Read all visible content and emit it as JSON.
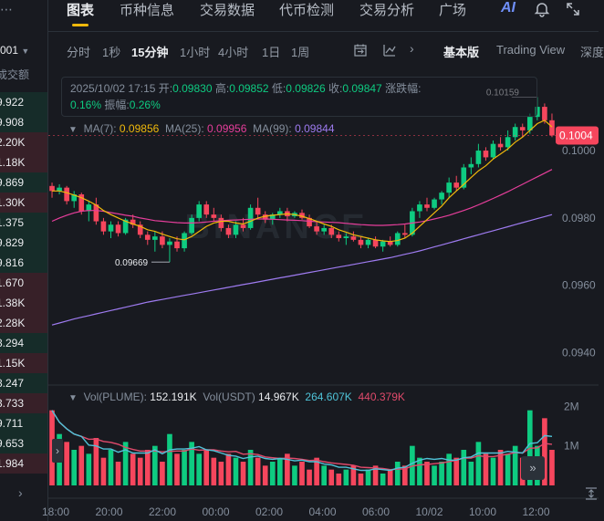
{
  "left_panel": {
    "header_value": "001",
    "header_label": "成交额",
    "rows": [
      {
        "text": "9.922",
        "dir": "up"
      },
      {
        "text": "9.908",
        "dir": "up"
      },
      {
        "text": "2.20K",
        "dir": "dn"
      },
      {
        "text": "1.18K",
        "dir": "dn"
      },
      {
        "text": "9.869",
        "dir": "up"
      },
      {
        "text": "1.30K",
        "dir": "dn"
      },
      {
        "text": "1.375",
        "dir": "up"
      },
      {
        "text": "9.829",
        "dir": "up"
      },
      {
        "text": "9.816",
        "dir": "up"
      },
      {
        "text": "1.670",
        "dir": "dn"
      },
      {
        "text": "1.38K",
        "dir": "dn"
      },
      {
        "text": "2.28K",
        "dir": "dn"
      },
      {
        "text": "8.294",
        "dir": "up"
      },
      {
        "text": "1.15K",
        "dir": "dn"
      },
      {
        "text": "8.247",
        "dir": "up"
      },
      {
        "text": "3.733",
        "dir": "dn"
      },
      {
        "text": "9.711",
        "dir": "up"
      },
      {
        "text": "9.653",
        "dir": "up"
      },
      {
        "text": "1.984",
        "dir": "dn"
      }
    ]
  },
  "nav": {
    "tabs": [
      "图表",
      "币种信息",
      "交易数据",
      "代币检测",
      "交易分析",
      "广场"
    ],
    "active": "图表",
    "ai_label": "AI"
  },
  "toolbar": {
    "intervals": [
      "分时",
      "1秒",
      "15分钟",
      "1小时",
      "4小时",
      "1日",
      "1周"
    ],
    "active_interval": "15分钟",
    "views": [
      "基本版",
      "Trading View",
      "深度"
    ],
    "active_view": "基本版"
  },
  "info": {
    "datetime": "2025/10/02 17:15",
    "open_label": "开:",
    "open": "0.09830",
    "high_label": "高:",
    "high": "0.09852",
    "low_label": "低:",
    "low": "0.09826",
    "close_label": "收:",
    "close": "0.09847",
    "change_label": "涨跌幅:",
    "change": "0.16%",
    "amplitude_label": "振幅:",
    "amplitude": "0.26%"
  },
  "ma": {
    "ma7_label": "MA(7):",
    "ma7": "0.09856",
    "ma25_label": "MA(25):",
    "ma25": "0.09956",
    "ma99_label": "MA(99):",
    "ma99": "0.09844"
  },
  "volume": {
    "vol_label": "Vol(PLUME):",
    "vol": "152.191K",
    "usdt_label": "Vol(USDT)",
    "usdt": "14.967K",
    "ma1": "264.607K",
    "ma2": "440.379K"
  },
  "price_axis": [
    "0.1004",
    "0.1000",
    "0.0980",
    "0.0960",
    "0.0940"
  ],
  "volume_axis": [
    "2M",
    "1M"
  ],
  "time_axis": [
    "18:00",
    "20:00",
    "22:00",
    "00:00",
    "02:00",
    "04:00",
    "06:00",
    "10/02",
    "10:00",
    "12:00"
  ],
  "annotations": {
    "high_marker": "0.10159",
    "low_marker": "0.09669"
  },
  "watermark": "BINANCE",
  "colors": {
    "up": "#0ecb81",
    "down": "#f6465d",
    "ma7": "#f0b90b",
    "ma25": "#e63e9b",
    "ma99": "#9e7bf0",
    "accent": "#f0b90b"
  },
  "chart_data": {
    "type": "candlestick",
    "interval": "15分钟",
    "ylim": [
      0.0932,
      0.1016
    ],
    "candles": [
      [
        0.09895,
        0.09905,
        0.0986,
        0.0988
      ],
      [
        0.0988,
        0.099,
        0.0987,
        0.0989
      ],
      [
        0.0989,
        0.09895,
        0.0984,
        0.0985
      ],
      [
        0.0985,
        0.0988,
        0.0983,
        0.0987
      ],
      [
        0.0987,
        0.09875,
        0.0981,
        0.0982
      ],
      [
        0.0982,
        0.0985,
        0.0979,
        0.0984
      ],
      [
        0.0984,
        0.0986,
        0.0978,
        0.0979
      ],
      [
        0.0979,
        0.098,
        0.0975,
        0.0976
      ],
      [
        0.0976,
        0.0979,
        0.0974,
        0.0978
      ],
      [
        0.0978,
        0.0979,
        0.09745,
        0.09755
      ],
      [
        0.09755,
        0.098,
        0.0975,
        0.09795
      ],
      [
        0.09795,
        0.0981,
        0.0977,
        0.0978
      ],
      [
        0.0978,
        0.0979,
        0.0974,
        0.0975
      ],
      [
        0.0975,
        0.0976,
        0.0972,
        0.09735
      ],
      [
        0.09735,
        0.0976,
        0.097,
        0.09745
      ],
      [
        0.09745,
        0.0976,
        0.0971,
        0.0972
      ],
      [
        0.0972,
        0.0974,
        0.09669,
        0.0973
      ],
      [
        0.0973,
        0.09745,
        0.097,
        0.0971
      ],
      [
        0.0971,
        0.0976,
        0.097,
        0.09755
      ],
      [
        0.09755,
        0.0981,
        0.0975,
        0.098
      ],
      [
        0.098,
        0.0985,
        0.0979,
        0.0984
      ],
      [
        0.0984,
        0.0985,
        0.098,
        0.0981
      ],
      [
        0.0981,
        0.0983,
        0.0979,
        0.098
      ],
      [
        0.098,
        0.0981,
        0.0976,
        0.0977
      ],
      [
        0.0977,
        0.0978,
        0.0974,
        0.0975
      ],
      [
        0.0975,
        0.0979,
        0.0974,
        0.0978
      ],
      [
        0.0978,
        0.098,
        0.0976,
        0.0977
      ],
      [
        0.0977,
        0.0984,
        0.09765,
        0.0983
      ],
      [
        0.0983,
        0.0986,
        0.098,
        0.0981
      ],
      [
        0.0981,
        0.0982,
        0.09785,
        0.09795
      ],
      [
        0.09795,
        0.09815,
        0.0978,
        0.0981
      ],
      [
        0.0981,
        0.0983,
        0.098,
        0.0982
      ],
      [
        0.0982,
        0.0983,
        0.0979,
        0.09805
      ],
      [
        0.09805,
        0.0982,
        0.098,
        0.09815
      ],
      [
        0.09815,
        0.09825,
        0.09795,
        0.098
      ],
      [
        0.098,
        0.0981,
        0.0977,
        0.09775
      ],
      [
        0.09775,
        0.0979,
        0.0975,
        0.0976
      ],
      [
        0.0976,
        0.0978,
        0.0975,
        0.0977
      ],
      [
        0.0977,
        0.0978,
        0.0974,
        0.0975
      ],
      [
        0.0975,
        0.0976,
        0.0973,
        0.0974
      ],
      [
        0.0974,
        0.09755,
        0.0972,
        0.09745
      ],
      [
        0.09745,
        0.0976,
        0.0973,
        0.09735
      ],
      [
        0.09735,
        0.09745,
        0.0971,
        0.0972
      ],
      [
        0.0972,
        0.0974,
        0.0971,
        0.09735
      ],
      [
        0.09735,
        0.09745,
        0.0971,
        0.09715
      ],
      [
        0.09715,
        0.09735,
        0.097,
        0.0973
      ],
      [
        0.0973,
        0.09745,
        0.09715,
        0.0972
      ],
      [
        0.0972,
        0.0976,
        0.09715,
        0.09755
      ],
      [
        0.09755,
        0.0978,
        0.0974,
        0.0975
      ],
      [
        0.0975,
        0.0983,
        0.09745,
        0.0982
      ],
      [
        0.0982,
        0.0985,
        0.098,
        0.0984
      ],
      [
        0.0984,
        0.0986,
        0.0982,
        0.0983
      ],
      [
        0.0983,
        0.0986,
        0.09825,
        0.09855
      ],
      [
        0.09855,
        0.0988,
        0.0984,
        0.09875
      ],
      [
        0.09875,
        0.0992,
        0.0986,
        0.09905
      ],
      [
        0.09905,
        0.09925,
        0.0988,
        0.0989
      ],
      [
        0.0989,
        0.0996,
        0.09885,
        0.0995
      ],
      [
        0.0995,
        0.0998,
        0.0993,
        0.0996
      ],
      [
        0.0996,
        0.1002,
        0.0995,
        0.1
      ],
      [
        0.1,
        0.1001,
        0.0997,
        0.0998
      ],
      [
        0.0998,
        0.1003,
        0.09975,
        0.1002
      ],
      [
        0.1002,
        0.1004,
        0.1,
        0.1001
      ],
      [
        0.1001,
        0.1006,
        0.1,
        0.1004
      ],
      [
        0.1004,
        0.1008,
        0.1003,
        0.1007
      ],
      [
        0.1007,
        0.1008,
        0.1004,
        0.1006
      ],
      [
        0.1006,
        0.1011,
        0.1005,
        0.101
      ],
      [
        0.101,
        0.10159,
        0.1009,
        0.1013
      ],
      [
        0.1013,
        0.1014,
        0.1008,
        0.1009
      ],
      [
        0.1009,
        0.1011,
        0.1004,
        0.10045
      ]
    ],
    "ma7": [
      0.0988,
      0.0988,
      0.09875,
      0.09868,
      0.0986,
      0.0985,
      0.09838,
      0.09822,
      0.0981,
      0.098,
      0.0979,
      0.09782,
      0.09775,
      0.09765,
      0.0976,
      0.09752,
      0.09745,
      0.09738,
      0.09735,
      0.09745,
      0.0976,
      0.09775,
      0.09785,
      0.0979,
      0.0979,
      0.09785,
      0.09782,
      0.0979,
      0.098,
      0.09805,
      0.09808,
      0.0981,
      0.09812,
      0.0981,
      0.09805,
      0.09798,
      0.0979,
      0.09782,
      0.09775,
      0.09765,
      0.09758,
      0.0975,
      0.09745,
      0.0974,
      0.09735,
      0.09732,
      0.0973,
      0.09733,
      0.0974,
      0.09755,
      0.09775,
      0.09795,
      0.09815,
      0.09835,
      0.0986,
      0.0988,
      0.099,
      0.0992,
      0.0994,
      0.09955,
      0.09975,
      0.0999,
      0.10005,
      0.10025,
      0.1004,
      0.1006,
      0.1008,
      0.1009,
      0.1007
    ],
    "ma25": [
      0.0979,
      0.098,
      0.09808,
      0.09815,
      0.0982,
      0.09822,
      0.09822,
      0.0982,
      0.09816,
      0.09812,
      0.09808,
      0.09805,
      0.098,
      0.09796,
      0.09792,
      0.0979,
      0.09788,
      0.09786,
      0.09785,
      0.09785,
      0.09786,
      0.09788,
      0.0979,
      0.09792,
      0.09793,
      0.09794,
      0.09795,
      0.09796,
      0.09797,
      0.09797,
      0.09796,
      0.09795,
      0.09794,
      0.09793,
      0.09792,
      0.0979,
      0.09789,
      0.09788,
      0.09787,
      0.09786,
      0.09784,
      0.09782,
      0.0978,
      0.09779,
      0.09778,
      0.09778,
      0.09779,
      0.0978,
      0.09782,
      0.09785,
      0.09788,
      0.09792,
      0.09797,
      0.09802,
      0.09808,
      0.09815,
      0.09822,
      0.0983,
      0.09839,
      0.09848,
      0.09858,
      0.09868,
      0.09878,
      0.09889,
      0.099,
      0.09911,
      0.09922,
      0.09933,
      0.09944
    ],
    "ma99": [
      0.09482,
      0.09488,
      0.09494,
      0.095,
      0.09505,
      0.0951,
      0.09515,
      0.0952,
      0.09525,
      0.0953,
      0.09535,
      0.0954,
      0.09545,
      0.0955,
      0.09554,
      0.09558,
      0.09562,
      0.09566,
      0.0957,
      0.09574,
      0.09578,
      0.09582,
      0.09586,
      0.0959,
      0.09594,
      0.09598,
      0.09602,
      0.09606,
      0.0961,
      0.09614,
      0.09618,
      0.09622,
      0.09626,
      0.0963,
      0.09634,
      0.09638,
      0.09642,
      0.09646,
      0.0965,
      0.09654,
      0.09658,
      0.09662,
      0.09666,
      0.0967,
      0.09674,
      0.09678,
      0.09682,
      0.09687,
      0.09692,
      0.09697,
      0.09702,
      0.09708,
      0.09714,
      0.0972,
      0.09726,
      0.09732,
      0.09738,
      0.09744,
      0.0975,
      0.09756,
      0.09762,
      0.09768,
      0.09774,
      0.0978,
      0.09786,
      0.09792,
      0.09798,
      0.09804,
      0.0981
    ],
    "volumes": [
      1.9,
      1.3,
      1.1,
      0.9,
      1.0,
      0.8,
      1.2,
      0.7,
      0.9,
      0.6,
      1.1,
      0.8,
      0.7,
      0.9,
      1.0,
      0.6,
      1.3,
      0.8,
      0.9,
      1.1,
      0.8,
      0.9,
      0.7,
      0.6,
      0.8,
      0.7,
      0.6,
      0.9,
      0.7,
      0.5,
      0.6,
      0.7,
      0.8,
      0.5,
      0.6,
      0.4,
      0.7,
      0.5,
      0.4,
      0.3,
      0.4,
      0.5,
      0.3,
      0.4,
      0.5,
      0.3,
      0.4,
      0.6,
      0.5,
      1.0,
      0.7,
      0.6,
      0.5,
      0.6,
      0.8,
      0.7,
      0.9,
      0.6,
      1.1,
      0.8,
      0.7,
      0.9,
      0.8,
      1.0,
      0.7,
      1.9,
      1.0,
      1.7,
      0.9
    ],
    "vol_ylim": [
      0,
      2.4
    ]
  }
}
